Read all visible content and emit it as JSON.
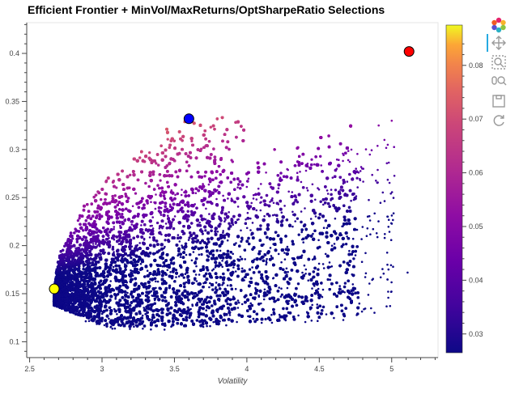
{
  "chart_data": {
    "type": "scatter",
    "title": "Efficient Frontier + MinVol/MaxReturns/OptSharpeRatio Selections",
    "xlabel": "Volatility",
    "ylabel": "",
    "xlim": [
      2.48,
      5.32
    ],
    "ylim": [
      0.0835,
      0.432
    ],
    "x_ticks": [
      "2.5",
      "3",
      "3.5",
      "4",
      "4.5",
      "5"
    ],
    "y_ticks": [
      "0.1",
      "0.15",
      "0.2",
      "0.25",
      "0.3",
      "0.35",
      "0.4"
    ],
    "grid": false,
    "colorbar": {
      "range": [
        0.0265,
        0.0875
      ],
      "ticks": [
        "0.03",
        "0.04",
        "0.05",
        "0.06",
        "0.07",
        "0.08"
      ],
      "palette": "plasma"
    },
    "frontier": {
      "min_vol": 2.67,
      "min_vol_return": 0.155,
      "upper_x": [
        2.67,
        2.7,
        2.8,
        2.9,
        3.0,
        3.1,
        3.2,
        3.3,
        3.4,
        3.5,
        3.6,
        3.7,
        3.8,
        3.9,
        4.0,
        4.2,
        4.4,
        4.6,
        4.8
      ],
      "upper_y": [
        0.155,
        0.19,
        0.222,
        0.247,
        0.268,
        0.285,
        0.299,
        0.311,
        0.322,
        0.329,
        0.333,
        0.336,
        0.339,
        0.34,
        0.342,
        0.352,
        0.362,
        0.374,
        0.386
      ],
      "lower_y_at_min_vol": 0.138,
      "outliers": [
        [
          5.0,
          0.33
        ],
        [
          5.01,
          0.178
        ],
        [
          5.11,
          0.172
        ],
        [
          4.91,
          0.325
        ],
        [
          4.75,
          0.19
        ],
        [
          4.95,
          0.31
        ]
      ]
    },
    "markers": [
      {
        "name": "MinVol",
        "x": 2.67,
        "y": 0.155,
        "color": "#ffff00"
      },
      {
        "name": "OptSharpeRatio",
        "x": 3.6,
        "y": 0.332,
        "color": "#0000ff"
      },
      {
        "name": "MaxReturns",
        "x": 5.12,
        "y": 0.402,
        "color": "#ff0000"
      }
    ]
  },
  "toolbar": {
    "tools": [
      "bokeh-logo-icon",
      "pan-icon",
      "box-zoom-icon",
      "wheel-zoom-icon",
      "save-icon",
      "reset-icon"
    ]
  }
}
